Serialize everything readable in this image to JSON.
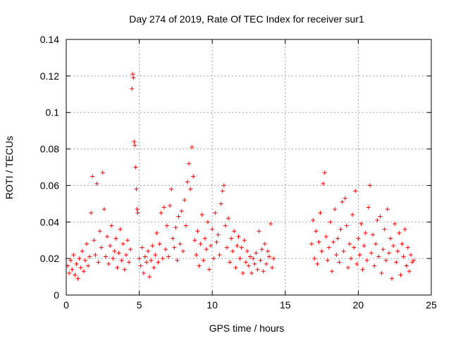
{
  "chart_data": {
    "type": "scatter",
    "title": "Day 274 of 2019, Rate Of TEC Index for receiver sur1",
    "xlabel": "GPS time / hours",
    "ylabel": "ROTI / TECUs",
    "xlim": [
      0,
      25
    ],
    "ylim": [
      0,
      0.14
    ],
    "xticks": [
      0,
      5,
      10,
      15,
      20,
      25
    ],
    "xtick_labels": [
      "0",
      "5",
      "10",
      "15",
      "20",
      "25"
    ],
    "yticks": [
      0,
      0.02,
      0.04,
      0.06,
      0.08,
      0.1,
      0.12,
      0.14
    ],
    "ytick_labels": [
      "0",
      "0.02",
      "0.04",
      "0.06",
      "0.08",
      "0.1",
      "0.12",
      "0.14"
    ],
    "grid": true,
    "marker": "+",
    "color": "#ff0000",
    "series": [
      {
        "points": [
          [
            0.1,
            0.016
          ],
          [
            0.2,
            0.012
          ],
          [
            0.3,
            0.019
          ],
          [
            0.4,
            0.014
          ],
          [
            0.5,
            0.022
          ],
          [
            0.6,
            0.011
          ],
          [
            0.7,
            0.017
          ],
          [
            0.8,
            0.009
          ],
          [
            0.9,
            0.02
          ],
          [
            1.0,
            0.015
          ],
          [
            1.1,
            0.024
          ],
          [
            1.2,
            0.013
          ],
          [
            1.3,
            0.019
          ],
          [
            1.4,
            0.028
          ],
          [
            1.5,
            0.016
          ],
          [
            1.6,
            0.021
          ],
          [
            1.7,
            0.045
          ],
          [
            1.8,
            0.065
          ],
          [
            1.9,
            0.03
          ],
          [
            2.0,
            0.022
          ],
          [
            2.1,
            0.061
          ],
          [
            2.2,
            0.018
          ],
          [
            2.3,
            0.035
          ],
          [
            2.4,
            0.026
          ],
          [
            2.5,
            0.067
          ],
          [
            2.6,
            0.047
          ],
          [
            2.7,
            0.021
          ],
          [
            2.8,
            0.032
          ],
          [
            2.9,
            0.017
          ],
          [
            3.0,
            0.027
          ],
          [
            3.1,
            0.038
          ],
          [
            3.2,
            0.02
          ],
          [
            3.3,
            0.024
          ],
          [
            3.4,
            0.031
          ],
          [
            3.5,
            0.015
          ],
          [
            3.6,
            0.023
          ],
          [
            3.7,
            0.036
          ],
          [
            3.8,
            0.019
          ],
          [
            3.9,
            0.028
          ],
          [
            4.0,
            0.014
          ],
          [
            4.1,
            0.022
          ],
          [
            4.2,
            0.03
          ],
          [
            4.3,
            0.018
          ],
          [
            4.4,
            0.025
          ],
          [
            4.5,
            0.113
          ],
          [
            4.55,
            0.121
          ],
          [
            4.6,
            0.119
          ],
          [
            4.65,
            0.084
          ],
          [
            4.7,
            0.082
          ],
          [
            4.75,
            0.07
          ],
          [
            4.8,
            0.058
          ],
          [
            4.85,
            0.047
          ],
          [
            4.9,
            0.045
          ],
          [
            5.0,
            0.02
          ],
          [
            5.1,
            0.016
          ],
          [
            5.2,
            0.026
          ],
          [
            5.3,
            0.012
          ],
          [
            5.4,
            0.021
          ],
          [
            5.5,
            0.018
          ],
          [
            5.6,
            0.024
          ],
          [
            5.7,
            0.01
          ],
          [
            5.8,
            0.019
          ],
          [
            5.9,
            0.027
          ],
          [
            6.0,
            0.015
          ],
          [
            6.1,
            0.022
          ],
          [
            6.2,
            0.034
          ],
          [
            6.3,
            0.018
          ],
          [
            6.4,
            0.028
          ],
          [
            6.5,
            0.045
          ],
          [
            6.6,
            0.02
          ],
          [
            6.7,
            0.048
          ],
          [
            6.8,
            0.025
          ],
          [
            6.9,
            0.038
          ],
          [
            7.0,
            0.021
          ],
          [
            7.1,
            0.049
          ],
          [
            7.2,
            0.058
          ],
          [
            7.3,
            0.031
          ],
          [
            7.4,
            0.026
          ],
          [
            7.5,
            0.037
          ],
          [
            7.6,
            0.019
          ],
          [
            7.7,
            0.043
          ],
          [
            7.8,
            0.028
          ],
          [
            7.9,
            0.046
          ],
          [
            8.0,
            0.024
          ],
          [
            8.1,
            0.052
          ],
          [
            8.2,
            0.038
          ],
          [
            8.3,
            0.062
          ],
          [
            8.4,
            0.072
          ],
          [
            8.5,
            0.058
          ],
          [
            8.6,
            0.081
          ],
          [
            8.7,
            0.065
          ],
          [
            8.8,
            0.03
          ],
          [
            8.9,
            0.022
          ],
          [
            9.0,
            0.035
          ],
          [
            9.1,
            0.016
          ],
          [
            9.2,
            0.028
          ],
          [
            9.3,
            0.044
          ],
          [
            9.4,
            0.019
          ],
          [
            9.5,
            0.031
          ],
          [
            9.6,
            0.025
          ],
          [
            9.7,
            0.04
          ],
          [
            9.8,
            0.014
          ],
          [
            9.9,
            0.027
          ],
          [
            10.0,
            0.036
          ],
          [
            10.1,
            0.02
          ],
          [
            10.2,
            0.045
          ],
          [
            10.3,
            0.029
          ],
          [
            10.4,
            0.033
          ],
          [
            10.5,
            0.022
          ],
          [
            10.6,
            0.05
          ],
          [
            10.7,
            0.057
          ],
          [
            10.8,
            0.06
          ],
          [
            10.9,
            0.038
          ],
          [
            11.0,
            0.026
          ],
          [
            11.1,
            0.042
          ],
          [
            11.2,
            0.018
          ],
          [
            11.3,
            0.031
          ],
          [
            11.4,
            0.024
          ],
          [
            11.5,
            0.035
          ],
          [
            11.6,
            0.015
          ],
          [
            11.7,
            0.027
          ],
          [
            11.8,
            0.032
          ],
          [
            11.9,
            0.02
          ],
          [
            12.0,
            0.026
          ],
          [
            12.1,
            0.012
          ],
          [
            12.2,
            0.03
          ],
          [
            12.3,
            0.018
          ],
          [
            12.4,
            0.024
          ],
          [
            12.5,
            0.016
          ],
          [
            12.6,
            0.021
          ],
          [
            12.7,
            0.012
          ],
          [
            12.8,
            0.02
          ],
          [
            12.9,
            0.017
          ],
          [
            13.0,
            0.023
          ],
          [
            13.1,
            0.014
          ],
          [
            13.2,
            0.035
          ],
          [
            13.3,
            0.019
          ],
          [
            13.4,
            0.025
          ],
          [
            13.5,
            0.013
          ],
          [
            13.6,
            0.028
          ],
          [
            13.7,
            0.017
          ],
          [
            13.8,
            0.024
          ],
          [
            13.9,
            0.021
          ],
          [
            14.0,
            0.039
          ],
          [
            14.1,
            0.015
          ],
          [
            14.2,
            0.02
          ],
          [
            16.8,
            0.028
          ],
          [
            16.9,
            0.041
          ],
          [
            17.0,
            0.02
          ],
          [
            17.1,
            0.035
          ],
          [
            17.2,
            0.017
          ],
          [
            17.3,
            0.029
          ],
          [
            17.4,
            0.045
          ],
          [
            17.5,
            0.024
          ],
          [
            17.6,
            0.061
          ],
          [
            17.7,
            0.067
          ],
          [
            17.8,
            0.032
          ],
          [
            17.9,
            0.019
          ],
          [
            18.0,
            0.026
          ],
          [
            18.1,
            0.04
          ],
          [
            18.2,
            0.013
          ],
          [
            18.3,
            0.029
          ],
          [
            18.4,
            0.047
          ],
          [
            18.5,
            0.022
          ],
          [
            18.6,
            0.031
          ],
          [
            18.7,
            0.018
          ],
          [
            18.8,
            0.036
          ],
          [
            18.9,
            0.051
          ],
          [
            19.0,
            0.024
          ],
          [
            19.1,
            0.053
          ],
          [
            19.2,
            0.038
          ],
          [
            19.3,
            0.015
          ],
          [
            19.4,
            0.028
          ],
          [
            19.5,
            0.02
          ],
          [
            19.6,
            0.044
          ],
          [
            19.7,
            0.026
          ],
          [
            19.8,
            0.057
          ],
          [
            19.9,
            0.017
          ],
          [
            20.0,
            0.031
          ],
          [
            20.1,
            0.022
          ],
          [
            20.2,
            0.039
          ],
          [
            20.3,
            0.014
          ],
          [
            20.4,
            0.027
          ],
          [
            20.5,
            0.034
          ],
          [
            20.6,
            0.019
          ],
          [
            20.7,
            0.048
          ],
          [
            20.8,
            0.06
          ],
          [
            20.9,
            0.023
          ],
          [
            21.0,
            0.033
          ],
          [
            21.1,
            0.016
          ],
          [
            21.2,
            0.028
          ],
          [
            21.3,
            0.041
          ],
          [
            21.4,
            0.021
          ],
          [
            21.5,
            0.043
          ],
          [
            21.6,
            0.012
          ],
          [
            21.7,
            0.025
          ],
          [
            21.8,
            0.036
          ],
          [
            21.9,
            0.019
          ],
          [
            22.0,
            0.047
          ],
          [
            22.1,
            0.023
          ],
          [
            22.2,
            0.031
          ],
          [
            22.3,
            0.009
          ],
          [
            22.4,
            0.027
          ],
          [
            22.5,
            0.039
          ],
          [
            22.6,
            0.018
          ],
          [
            22.7,
            0.024
          ],
          [
            22.8,
            0.034
          ],
          [
            22.9,
            0.011
          ],
          [
            23.0,
            0.028
          ],
          [
            23.1,
            0.021
          ],
          [
            23.2,
            0.036
          ],
          [
            23.3,
            0.016
          ],
          [
            23.4,
            0.026
          ],
          [
            23.5,
            0.013
          ],
          [
            23.6,
            0.022
          ],
          [
            23.7,
            0.018
          ],
          [
            23.8,
            0.019
          ]
        ]
      }
    ]
  }
}
